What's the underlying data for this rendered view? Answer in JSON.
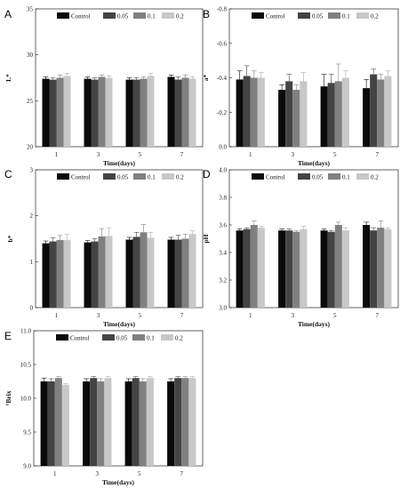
{
  "colors": {
    "Control": "#0a0a0a",
    "0.05": "#444444",
    "0.1": "#808080",
    "0.2": "#c8c8c8"
  },
  "chart_data": [
    {
      "panel": "A",
      "type": "bar",
      "categories": [
        "1",
        "3",
        "5",
        "7"
      ],
      "xlabel": "Time(days)",
      "ylabel": "L*",
      "ylim": [
        20,
        35
      ],
      "yticks": [
        20,
        25,
        30,
        35
      ],
      "inverted": false,
      "legend": "top-center",
      "series": [
        {
          "name": "Control",
          "values": [
            27.4,
            27.4,
            27.3,
            27.6
          ],
          "errors": [
            0.2,
            0.2,
            0.2,
            0.2
          ]
        },
        {
          "name": "0.05",
          "values": [
            27.3,
            27.3,
            27.3,
            27.3
          ],
          "errors": [
            0.2,
            0.2,
            0.2,
            0.3
          ]
        },
        {
          "name": "0.1",
          "values": [
            27.5,
            27.6,
            27.4,
            27.5
          ],
          "errors": [
            0.3,
            0.2,
            0.2,
            0.3
          ]
        },
        {
          "name": "0.2",
          "values": [
            27.7,
            27.5,
            27.7,
            27.4
          ],
          "errors": [
            0.3,
            0.2,
            0.3,
            0.2
          ]
        }
      ]
    },
    {
      "panel": "B",
      "type": "bar",
      "categories": [
        "1",
        "3",
        "5",
        "7"
      ],
      "xlabel": "Time(days)",
      "ylabel": "a*",
      "ylim": [
        0.0,
        -0.8
      ],
      "yticks": [
        0.0,
        -0.2,
        -0.4,
        -0.6,
        -0.8
      ],
      "inverted": true,
      "legend": "top-center",
      "series": [
        {
          "name": "Control",
          "values": [
            -0.39,
            -0.33,
            -0.35,
            -0.34
          ],
          "errors": [
            0.05,
            0.03,
            0.07,
            0.05
          ]
        },
        {
          "name": "0.05",
          "values": [
            -0.41,
            -0.38,
            -0.37,
            -0.42
          ],
          "errors": [
            0.06,
            0.04,
            0.05,
            0.03
          ]
        },
        {
          "name": "0.1",
          "values": [
            -0.4,
            -0.33,
            -0.38,
            -0.39
          ],
          "errors": [
            0.04,
            0.03,
            0.1,
            0.03
          ]
        },
        {
          "name": "0.2",
          "values": [
            -0.4,
            -0.38,
            -0.4,
            -0.41
          ],
          "errors": [
            0.03,
            0.05,
            0.04,
            0.03
          ]
        }
      ]
    },
    {
      "panel": "C",
      "type": "bar",
      "categories": [
        "1",
        "3",
        "5",
        "7"
      ],
      "xlabel": "Time(days)",
      "ylabel": "b*",
      "ylim": [
        0,
        3
      ],
      "yticks": [
        0,
        1,
        2,
        3
      ],
      "inverted": false,
      "legend": "top-center",
      "series": [
        {
          "name": "Control",
          "values": [
            1.4,
            1.42,
            1.48,
            1.48
          ],
          "errors": [
            0.05,
            0.04,
            0.05,
            0.05
          ]
        },
        {
          "name": "0.05",
          "values": [
            1.44,
            1.44,
            1.54,
            1.48
          ],
          "errors": [
            0.08,
            0.06,
            0.1,
            0.1
          ]
        },
        {
          "name": "0.1",
          "values": [
            1.47,
            1.55,
            1.64,
            1.5
          ],
          "errors": [
            0.1,
            0.17,
            0.17,
            0.1
          ]
        },
        {
          "name": "0.2",
          "values": [
            1.47,
            1.56,
            1.52,
            1.6
          ],
          "errors": [
            0.12,
            0.18,
            0.12,
            0.07
          ]
        }
      ]
    },
    {
      "panel": "D",
      "type": "bar",
      "categories": [
        "1",
        "3",
        "5",
        "7"
      ],
      "xlabel": "Time(days)",
      "ylabel": "pH",
      "ylim": [
        3.0,
        4.0
      ],
      "yticks": [
        3.0,
        3.2,
        3.4,
        3.6,
        3.8,
        4.0
      ],
      "inverted": false,
      "legend": "top-center",
      "series": [
        {
          "name": "Control",
          "values": [
            3.56,
            3.56,
            3.56,
            3.6
          ],
          "errors": [
            0.01,
            0.01,
            0.01,
            0.02
          ]
        },
        {
          "name": "0.05",
          "values": [
            3.57,
            3.56,
            3.55,
            3.56
          ],
          "errors": [
            0.01,
            0.01,
            0.01,
            0.02
          ]
        },
        {
          "name": "0.1",
          "values": [
            3.6,
            3.55,
            3.6,
            3.58
          ],
          "errors": [
            0.03,
            0.01,
            0.02,
            0.05
          ]
        },
        {
          "name": "0.2",
          "values": [
            3.58,
            3.57,
            3.56,
            3.57
          ],
          "errors": [
            0.01,
            0.02,
            0.02,
            0.01
          ]
        }
      ]
    },
    {
      "panel": "E",
      "type": "bar",
      "categories": [
        "1",
        "3",
        "5",
        "7"
      ],
      "xlabel": "Time(days)",
      "ylabel": "°Brix",
      "ylim": [
        9.0,
        11.0
      ],
      "yticks": [
        9.0,
        9.5,
        10.0,
        10.5,
        11.0
      ],
      "inverted": false,
      "legend": "top-center",
      "series": [
        {
          "name": "Control",
          "values": [
            10.25,
            10.25,
            10.25,
            10.25
          ],
          "errors": [
            0.05,
            0.04,
            0.04,
            0.04
          ]
        },
        {
          "name": "0.05",
          "values": [
            10.25,
            10.3,
            10.3,
            10.3
          ],
          "errors": [
            0.04,
            0.02,
            0.02,
            0.02
          ]
        },
        {
          "name": "0.1",
          "values": [
            10.3,
            10.25,
            10.25,
            10.3
          ],
          "errors": [
            0.02,
            0.04,
            0.04,
            0.02
          ]
        },
        {
          "name": "0.2",
          "values": [
            10.2,
            10.3,
            10.3,
            10.3
          ],
          "errors": [
            0.02,
            0.02,
            0.02,
            0.02
          ]
        }
      ]
    }
  ]
}
